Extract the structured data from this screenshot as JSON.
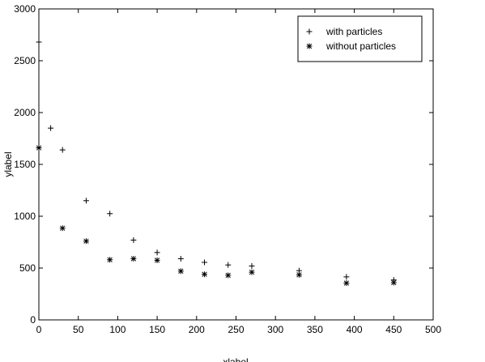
{
  "chart_data": {
    "type": "scatter",
    "xlabel": "xlabel",
    "ylabel": "ylabel",
    "xlim": [
      0,
      500
    ],
    "ylim": [
      0,
      3000
    ],
    "xticks": [
      0,
      50,
      100,
      150,
      200,
      250,
      300,
      350,
      400,
      450,
      500
    ],
    "yticks": [
      0,
      500,
      1000,
      1500,
      2000,
      2500,
      3000
    ],
    "grid": false,
    "legend_position": "top-right",
    "series": [
      {
        "name": "with particles",
        "marker": "plus",
        "color": "#000000",
        "points": [
          [
            0,
            2680
          ],
          [
            15,
            1850
          ],
          [
            30,
            1640
          ],
          [
            60,
            1150
          ],
          [
            90,
            1025
          ],
          [
            120,
            770
          ],
          [
            150,
            650
          ],
          [
            180,
            590
          ],
          [
            210,
            555
          ],
          [
            240,
            530
          ],
          [
            270,
            520
          ],
          [
            330,
            475
          ],
          [
            390,
            415
          ],
          [
            450,
            385
          ]
        ]
      },
      {
        "name": "without particles",
        "marker": "asterisk",
        "color": "#000000",
        "points": [
          [
            0,
            1660
          ],
          [
            30,
            885
          ],
          [
            60,
            760
          ],
          [
            90,
            580
          ],
          [
            120,
            590
          ],
          [
            150,
            575
          ],
          [
            180,
            470
          ],
          [
            210,
            440
          ],
          [
            240,
            430
          ],
          [
            270,
            460
          ],
          [
            330,
            435
          ],
          [
            390,
            355
          ],
          [
            450,
            360
          ]
        ]
      }
    ]
  }
}
